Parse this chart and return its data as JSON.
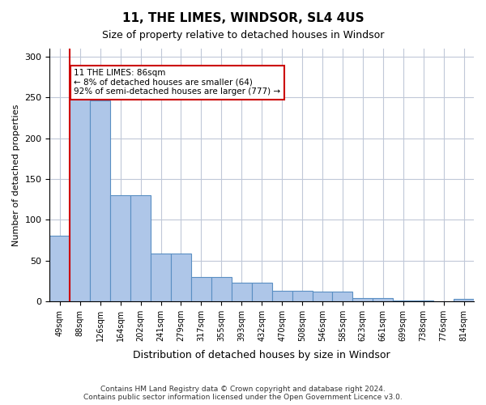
{
  "title1": "11, THE LIMES, WINDSOR, SL4 4US",
  "title2": "Size of property relative to detached houses in Windsor",
  "xlabel": "Distribution of detached houses by size in Windsor",
  "ylabel": "Number of detached properties",
  "categories": [
    "49sqm",
    "88sqm",
    "126sqm",
    "164sqm",
    "202sqm",
    "241sqm",
    "279sqm",
    "317sqm",
    "355sqm",
    "393sqm",
    "432sqm",
    "470sqm",
    "508sqm",
    "546sqm",
    "585sqm",
    "623sqm",
    "661sqm",
    "699sqm",
    "738sqm",
    "776sqm",
    "814sqm"
  ],
  "values": [
    80,
    250,
    246,
    130,
    130,
    58,
    58,
    30,
    30,
    23,
    23,
    13,
    13,
    12,
    12,
    4,
    4,
    1,
    1,
    0,
    3
  ],
  "bar_color": "#aec6e8",
  "bar_edge_color": "#5a8fc3",
  "property_line_x": 1,
  "annotation_text": "11 THE LIMES: 86sqm\n← 8% of detached houses are smaller (64)\n92% of semi-detached houses are larger (777) →",
  "annotation_box_color": "#ffffff",
  "annotation_box_edge": "#cc0000",
  "redline_color": "#cc0000",
  "ylim": [
    0,
    310
  ],
  "yticks": [
    0,
    50,
    100,
    150,
    200,
    250,
    300
  ],
  "footnote": "Contains HM Land Registry data © Crown copyright and database right 2024.\nContains public sector information licensed under the Open Government Licence v3.0.",
  "background_color": "#ffffff",
  "grid_color": "#c0c8d8"
}
